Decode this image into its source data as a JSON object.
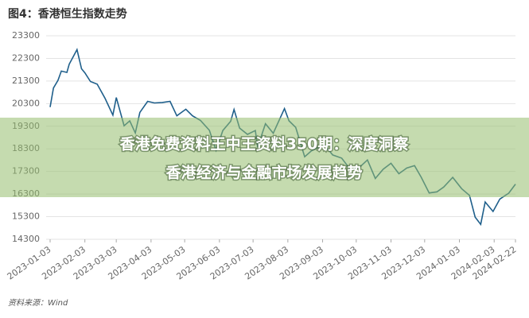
{
  "chart_data": {
    "type": "line",
    "title": "图4：香港恒生指数走势",
    "source": "资料来源：Wind",
    "x": [
      "2023-01-03",
      "2023-01-06",
      "2023-01-10",
      "2023-01-13",
      "2023-01-18",
      "2023-01-20",
      "2023-01-27",
      "2023-01-31",
      "2023-02-03",
      "2023-02-08",
      "2023-02-14",
      "2023-02-21",
      "2023-02-28",
      "2023-03-03",
      "2023-03-10",
      "2023-03-15",
      "2023-03-20",
      "2023-03-24",
      "2023-03-31",
      "2023-04-06",
      "2023-04-13",
      "2023-04-20",
      "2023-04-26",
      "2023-05-04",
      "2023-05-10",
      "2023-05-17",
      "2023-05-25",
      "2023-05-31",
      "2023-06-06",
      "2023-06-13",
      "2023-06-16",
      "2023-06-21",
      "2023-06-28",
      "2023-07-05",
      "2023-07-07",
      "2023-07-14",
      "2023-07-21",
      "2023-07-31",
      "2023-08-04",
      "2023-08-10",
      "2023-08-18",
      "2023-08-24",
      "2023-08-31",
      "2023-09-05",
      "2023-09-12",
      "2023-09-20",
      "2023-09-28",
      "2023-10-06",
      "2023-10-13",
      "2023-10-20",
      "2023-10-27",
      "2023-11-03",
      "2023-11-10",
      "2023-11-17",
      "2023-11-24",
      "2023-11-30",
      "2023-12-07",
      "2023-12-14",
      "2023-12-20",
      "2023-12-28",
      "2024-01-05",
      "2024-01-12",
      "2024-01-17",
      "2024-01-22",
      "2024-01-26",
      "2024-02-02",
      "2024-02-08",
      "2024-02-16",
      "2024-02-22"
    ],
    "series": [
      {
        "color": "#1f5f8b",
        "values": [
          20145,
          20990,
          21330,
          21740,
          21680,
          22040,
          22690,
          21840,
          21660,
          21280,
          21160,
          20530,
          19790,
          20570,
          19320,
          19540,
          19000,
          19910,
          20400,
          20330,
          20350,
          20400,
          19760,
          20050,
          19760,
          19560,
          19120,
          18230,
          19110,
          19520,
          20040,
          19220,
          18940,
          19110,
          18370,
          19410,
          18990,
          20080,
          19540,
          19250,
          17950,
          18210,
          18380,
          18460,
          18030,
          17890,
          17370,
          17490,
          17810,
          16990,
          17400,
          17660,
          17200,
          17450,
          17560,
          17040,
          16350,
          16400,
          16610,
          17040,
          16540,
          16240,
          15280,
          14960,
          15950,
          15530,
          16080,
          16340,
          16740
        ]
      }
    ],
    "xlim": [
      "2023-01-03",
      "2024-02-22"
    ],
    "xticks": [
      "2023-01-03",
      "2023-02-03",
      "2023-03-03",
      "2023-04-03",
      "2023-05-03",
      "2023-06-03",
      "2023-07-03",
      "2023-08-03",
      "2023-09-03",
      "2023-10-03",
      "2023-11-03",
      "2023-12-03",
      "2024-01-03",
      "2024-02-03",
      "2024-02-22"
    ],
    "ylim": [
      14300,
      23300
    ],
    "yticks": [
      14300,
      15300,
      16300,
      17300,
      18300,
      19300,
      20300,
      21300,
      22300,
      23300
    ],
    "grid": true
  },
  "banner": {
    "lines": [
      "香港免费资料王中王资料350期：深度洞察",
      "香港经济与金融市场发展趋势"
    ]
  }
}
